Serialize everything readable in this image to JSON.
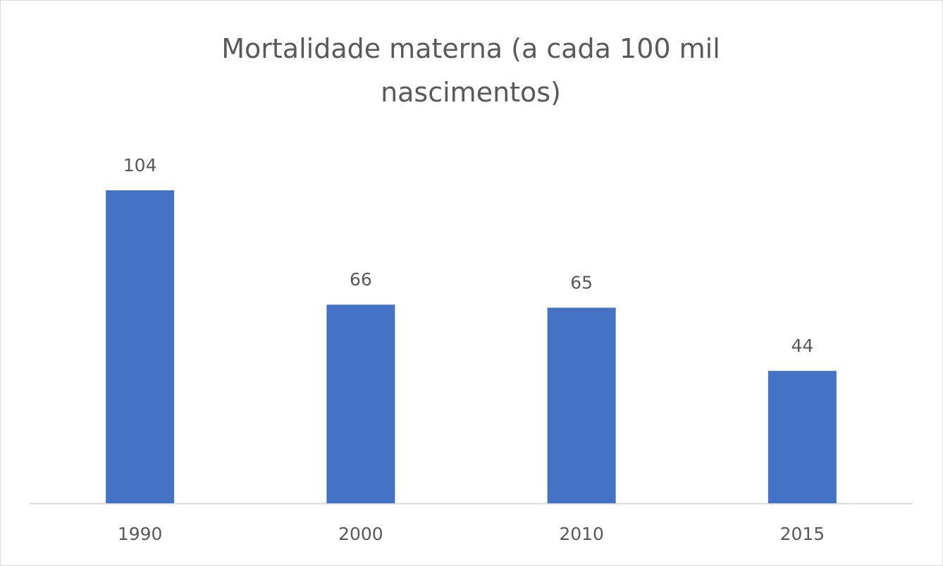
{
  "chart_data": {
    "type": "bar",
    "title": "Mortalidade materna (a cada 100 mil nascimentos)",
    "categories": [
      "1990",
      "2000",
      "2010",
      "2015"
    ],
    "values": [
      104,
      66,
      65,
      44
    ],
    "color": "#4472c4"
  }
}
